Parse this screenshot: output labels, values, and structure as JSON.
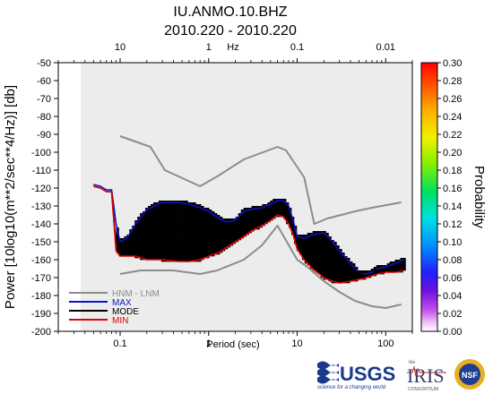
{
  "chart_data": {
    "type": "heatmap",
    "title_line1": "IU.ANMO.10.BHZ",
    "title_line2": "2010.220 - 2010.220",
    "xlabel": "Period (sec)",
    "ylabel": "Power [10log10(m**2/sec**4/Hz)] [db]",
    "top_axis_label": "Hz",
    "colorbar_label": "Probability",
    "x_scale": "log",
    "xlim": [
      0.02,
      200
    ],
    "ylim": [
      -200,
      -50
    ],
    "x_ticks": [
      {
        "value": 0.1,
        "label": "0.1"
      },
      {
        "value": 1,
        "label": "1"
      },
      {
        "value": 10,
        "label": "10"
      },
      {
        "value": 100,
        "label": "100"
      }
    ],
    "top_ticks": [
      {
        "value": 0.1,
        "label": "10"
      },
      {
        "value": 1,
        "label": "1"
      },
      {
        "value": 10,
        "label": "0.1"
      },
      {
        "value": 100,
        "label": "0.01"
      }
    ],
    "y_ticks": [
      "-50",
      "-60",
      "-70",
      "-80",
      "-90",
      "-100",
      "-110",
      "-120",
      "-130",
      "-140",
      "-150",
      "-160",
      "-170",
      "-180",
      "-190",
      "-200"
    ],
    "colorbar_ticks": [
      "0.30",
      "0.28",
      "0.26",
      "0.24",
      "0.22",
      "0.20",
      "0.18",
      "0.16",
      "0.14",
      "0.12",
      "0.10",
      "0.08",
      "0.06",
      "0.04",
      "0.02",
      "0.00"
    ],
    "colorbar_range": [
      0.0,
      0.3
    ],
    "legend": [
      {
        "label": "HNM - LNM",
        "color": "#8c8c8c"
      },
      {
        "label": "MAX",
        "color": "#1010c8"
      },
      {
        "label": "MODE",
        "color": "#000000"
      },
      {
        "label": "MIN",
        "color": "#e00000"
      }
    ],
    "series": [
      {
        "name": "HNM - LNM",
        "part": "HNM",
        "x": [
          0.1,
          0.22,
          0.32,
          0.8,
          1.3,
          2.5,
          6.0,
          7.5,
          12,
          15.6,
          21.9,
          31.6,
          45,
          70,
          150
        ],
        "y": [
          -91,
          -97,
          -110,
          -119,
          -113,
          -104,
          -97,
          -99,
          -114,
          -140,
          -137,
          -135,
          -133,
          -131,
          -128
        ]
      },
      {
        "name": "HNM - LNM",
        "part": "LNM",
        "x": [
          0.1,
          0.17,
          0.4,
          0.8,
          1.25,
          2.5,
          4.0,
          6.0,
          10,
          13,
          20,
          30,
          45,
          70,
          100,
          150
        ],
        "y": [
          -168,
          -166,
          -166,
          -168,
          -166,
          -160,
          -152,
          -141,
          -160,
          -164,
          -172,
          -178,
          -183,
          -186,
          -187,
          -185
        ]
      },
      {
        "name": "MAX",
        "x": [
          0.05,
          0.06,
          0.07,
          0.08,
          0.09,
          0.1,
          0.12,
          0.15,
          0.2,
          0.3,
          0.45,
          0.6,
          0.8,
          1.0,
          1.3,
          1.6,
          2.0,
          2.5,
          3,
          4,
          5,
          6,
          7,
          8,
          9,
          10,
          12,
          15,
          20,
          25,
          30,
          40,
          50,
          60,
          70,
          80,
          100,
          130,
          160
        ],
        "y": [
          -118,
          -119,
          -121,
          -121,
          -140,
          -150,
          -148,
          -140,
          -132,
          -128,
          -128,
          -129,
          -131,
          -133,
          -137,
          -139,
          -138,
          -133,
          -132,
          -131,
          -129,
          -127,
          -127,
          -130,
          -138,
          -147,
          -148,
          -146,
          -145,
          -150,
          -155,
          -162,
          -167,
          -168,
          -167,
          -165,
          -164,
          -162,
          -160
        ]
      },
      {
        "name": "MODE",
        "x": [
          0.05,
          0.06,
          0.07,
          0.08,
          0.09,
          0.1,
          0.12,
          0.15,
          0.2,
          0.3,
          0.45,
          0.6,
          0.8,
          1.0,
          1.3,
          1.6,
          2.0,
          2.5,
          3,
          4,
          5,
          6,
          7,
          8,
          9,
          10,
          12,
          15,
          20,
          25,
          30,
          40,
          50,
          60,
          70,
          80,
          100,
          130,
          160
        ],
        "y": [
          -119,
          -120,
          -122,
          -122,
          -152,
          -155,
          -155,
          -155,
          -155,
          -155,
          -156,
          -156,
          -154,
          -152,
          -150,
          -148,
          -146,
          -143,
          -140,
          -137,
          -134,
          -131,
          -132,
          -136,
          -142,
          -150,
          -155,
          -160,
          -165,
          -167,
          -168,
          -168,
          -167,
          -167,
          -166,
          -166,
          -165,
          -165,
          -164
        ]
      },
      {
        "name": "MIN",
        "x": [
          0.05,
          0.06,
          0.07,
          0.08,
          0.09,
          0.1,
          0.12,
          0.15,
          0.2,
          0.3,
          0.45,
          0.6,
          0.8,
          1.0,
          1.3,
          1.6,
          2.0,
          2.5,
          3,
          4,
          5,
          6,
          7,
          8,
          9,
          10,
          12,
          15,
          20,
          25,
          30,
          40,
          50,
          60,
          70,
          80,
          100,
          130,
          160
        ],
        "y": [
          -119,
          -120,
          -122,
          -122,
          -155,
          -158,
          -158,
          -158,
          -160,
          -160,
          -161,
          -161,
          -160,
          -158,
          -156,
          -153,
          -150,
          -147,
          -144,
          -141,
          -138,
          -135,
          -136,
          -140,
          -146,
          -154,
          -160,
          -165,
          -170,
          -172,
          -173,
          -172,
          -171,
          -170,
          -169,
          -168,
          -167,
          -167,
          -166
        ]
      }
    ]
  }
}
